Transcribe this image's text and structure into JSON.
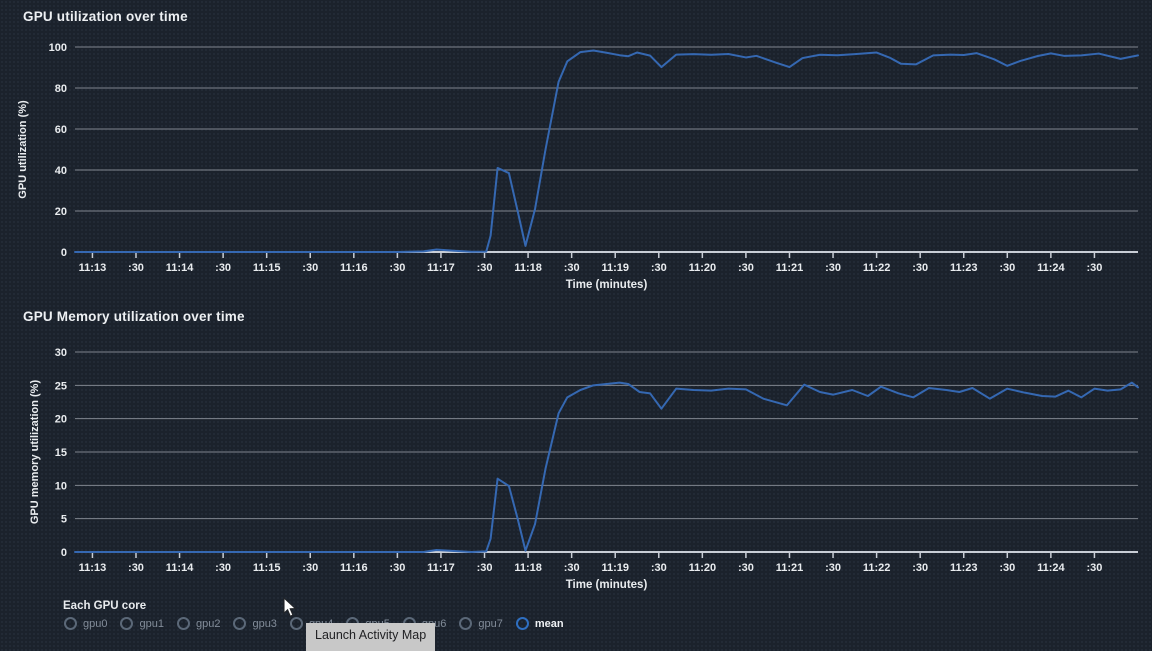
{
  "theme": {
    "background": "#1b222c",
    "grid": "#80868f",
    "axis": "#c9ced6",
    "tick_text": "#e9ecef",
    "line": "#3568b2",
    "title_text": "#edf0f3"
  },
  "chart_data": [
    {
      "type": "line",
      "title": "GPU utilization over time",
      "xlabel": "Time (minutes)",
      "ylabel": "GPU utilization (%)",
      "ylim": [
        0,
        100
      ],
      "yticks": [
        0,
        20,
        40,
        60,
        80,
        100
      ],
      "xlim": [
        -0.2,
        12.0
      ],
      "x_unit": "minutes after 11:13",
      "grid": true,
      "legend": false,
      "xticks": [
        [
          0,
          "11:13"
        ],
        [
          0.5,
          ":30"
        ],
        [
          1,
          "11:14"
        ],
        [
          1.5,
          ":30"
        ],
        [
          2,
          "11:15"
        ],
        [
          2.5,
          ":30"
        ],
        [
          3,
          "11:16"
        ],
        [
          3.5,
          ":30"
        ],
        [
          4,
          "11:17"
        ],
        [
          4.5,
          ":30"
        ],
        [
          5,
          "11:18"
        ],
        [
          5.5,
          ":30"
        ],
        [
          6,
          "11:19"
        ],
        [
          6.5,
          ":30"
        ],
        [
          7,
          "11:20"
        ],
        [
          7.5,
          ":30"
        ],
        [
          8,
          "11:21"
        ],
        [
          8.5,
          ":30"
        ],
        [
          9,
          "11:22"
        ],
        [
          9.5,
          ":30"
        ],
        [
          10,
          "11:23"
        ],
        [
          10.5,
          ":30"
        ],
        [
          11,
          "11:24"
        ],
        [
          11.5,
          ":30"
        ]
      ],
      "series": [
        {
          "name": "mean",
          "points": [
            [
              -0.2,
              0
            ],
            [
              0,
              0
            ],
            [
              0.5,
              0
            ],
            [
              1,
              0
            ],
            [
              1.5,
              0
            ],
            [
              2,
              0
            ],
            [
              2.5,
              0
            ],
            [
              3,
              0
            ],
            [
              3.5,
              0
            ],
            [
              3.8,
              0.3
            ],
            [
              3.95,
              1.2
            ],
            [
              4.15,
              0.6
            ],
            [
              4.35,
              0.1
            ],
            [
              4.52,
              0.2
            ],
            [
              4.57,
              8
            ],
            [
              4.65,
              41
            ],
            [
              4.78,
              38.5
            ],
            [
              4.88,
              20
            ],
            [
              4.97,
              3
            ],
            [
              5.08,
              21
            ],
            [
              5.2,
              50
            ],
            [
              5.35,
              83
            ],
            [
              5.45,
              93
            ],
            [
              5.6,
              97.5
            ],
            [
              5.75,
              98.3
            ],
            [
              5.9,
              97.2
            ],
            [
              6.05,
              96
            ],
            [
              6.15,
              95.5
            ],
            [
              6.25,
              97.3
            ],
            [
              6.4,
              95.8
            ],
            [
              6.53,
              90.2
            ],
            [
              6.7,
              96.3
            ],
            [
              6.9,
              96.5
            ],
            [
              7.1,
              96.2
            ],
            [
              7.3,
              96.6
            ],
            [
              7.5,
              94.9
            ],
            [
              7.62,
              95.7
            ],
            [
              7.85,
              92.3
            ],
            [
              8,
              90.2
            ],
            [
              8.15,
              94.6
            ],
            [
              8.35,
              96.2
            ],
            [
              8.55,
              96
            ],
            [
              8.75,
              96.5
            ],
            [
              9,
              97.3
            ],
            [
              9.15,
              94.8
            ],
            [
              9.28,
              91.8
            ],
            [
              9.45,
              91.5
            ],
            [
              9.65,
              95.9
            ],
            [
              9.85,
              96.3
            ],
            [
              10,
              96.1
            ],
            [
              10.15,
              97
            ],
            [
              10.35,
              94
            ],
            [
              10.5,
              90.8
            ],
            [
              10.65,
              93.2
            ],
            [
              10.85,
              95.6
            ],
            [
              11,
              96.9
            ],
            [
              11.15,
              95.7
            ],
            [
              11.35,
              95.9
            ],
            [
              11.55,
              96.8
            ],
            [
              11.8,
              94.2
            ],
            [
              12,
              95.9
            ]
          ]
        }
      ]
    },
    {
      "type": "line",
      "title": "GPU Memory utilization over time",
      "xlabel": "Time (minutes)",
      "ylabel": "GPU memory utilization (%)",
      "ylim": [
        0,
        30
      ],
      "yticks": [
        0,
        5,
        10,
        15,
        20,
        25,
        30
      ],
      "xlim": [
        -0.2,
        12.0
      ],
      "x_unit": "minutes after 11:13",
      "grid": true,
      "legend": false,
      "xticks": [
        [
          0,
          "11:13"
        ],
        [
          0.5,
          ":30"
        ],
        [
          1,
          "11:14"
        ],
        [
          1.5,
          ":30"
        ],
        [
          2,
          "11:15"
        ],
        [
          2.5,
          ":30"
        ],
        [
          3,
          "11:16"
        ],
        [
          3.5,
          ":30"
        ],
        [
          4,
          "11:17"
        ],
        [
          4.5,
          ":30"
        ],
        [
          5,
          "11:18"
        ],
        [
          5.5,
          ":30"
        ],
        [
          6,
          "11:19"
        ],
        [
          6.5,
          ":30"
        ],
        [
          7,
          "11:20"
        ],
        [
          7.5,
          ":30"
        ],
        [
          8,
          "11:21"
        ],
        [
          8.5,
          ":30"
        ],
        [
          9,
          "11:22"
        ],
        [
          9.5,
          ":30"
        ],
        [
          10,
          "11:23"
        ],
        [
          10.5,
          ":30"
        ],
        [
          11,
          "11:24"
        ],
        [
          11.5,
          ":30"
        ]
      ],
      "series": [
        {
          "name": "mean",
          "points": [
            [
              -0.2,
              0
            ],
            [
              0,
              0
            ],
            [
              0.5,
              0
            ],
            [
              1,
              0
            ],
            [
              1.5,
              0
            ],
            [
              2,
              0
            ],
            [
              2.5,
              0
            ],
            [
              3,
              0
            ],
            [
              3.5,
              0
            ],
            [
              3.8,
              0
            ],
            [
              3.95,
              0.3
            ],
            [
              4.15,
              0.15
            ],
            [
              4.35,
              0
            ],
            [
              4.52,
              0.1
            ],
            [
              4.57,
              2
            ],
            [
              4.65,
              11
            ],
            [
              4.78,
              9.9
            ],
            [
              4.88,
              5
            ],
            [
              4.97,
              0.2
            ],
            [
              5.08,
              4.2
            ],
            [
              5.2,
              12.5
            ],
            [
              5.35,
              20.8
            ],
            [
              5.45,
              23.2
            ],
            [
              5.6,
              24.3
            ],
            [
              5.75,
              25
            ],
            [
              5.9,
              25.2
            ],
            [
              6.05,
              25.4
            ],
            [
              6.15,
              25.2
            ],
            [
              6.28,
              24
            ],
            [
              6.4,
              23.8
            ],
            [
              6.53,
              21.5
            ],
            [
              6.7,
              24.5
            ],
            [
              6.9,
              24.3
            ],
            [
              7.1,
              24.2
            ],
            [
              7.3,
              24.5
            ],
            [
              7.5,
              24.4
            ],
            [
              7.7,
              23
            ],
            [
              7.97,
              22
            ],
            [
              8.17,
              25.1
            ],
            [
              8.35,
              24
            ],
            [
              8.5,
              23.6
            ],
            [
              8.72,
              24.3
            ],
            [
              8.9,
              23.4
            ],
            [
              9.05,
              24.8
            ],
            [
              9.25,
              23.8
            ],
            [
              9.42,
              23.2
            ],
            [
              9.6,
              24.6
            ],
            [
              9.8,
              24.3
            ],
            [
              9.95,
              24
            ],
            [
              10.1,
              24.6
            ],
            [
              10.3,
              23
            ],
            [
              10.5,
              24.5
            ],
            [
              10.7,
              23.9
            ],
            [
              10.9,
              23.4
            ],
            [
              11.05,
              23.3
            ],
            [
              11.2,
              24.2
            ],
            [
              11.35,
              23.2
            ],
            [
              11.5,
              24.5
            ],
            [
              11.65,
              24.2
            ],
            [
              11.8,
              24.4
            ],
            [
              11.93,
              25.4
            ],
            [
              12,
              24.7
            ]
          ]
        }
      ]
    }
  ],
  "controls": {
    "label": "Each GPU core",
    "options": [
      "gpu0",
      "gpu1",
      "gpu2",
      "gpu3",
      "gpu4",
      "gpu5",
      "gpu6",
      "gpu7",
      "mean"
    ],
    "selected": "mean",
    "selected_color": "#2f6fc1",
    "unselected_color": "#5b6878"
  },
  "tooltip": {
    "text": "Launch Activity Map",
    "bg": "#c8c8c8",
    "text_color": "#1f1f22"
  }
}
